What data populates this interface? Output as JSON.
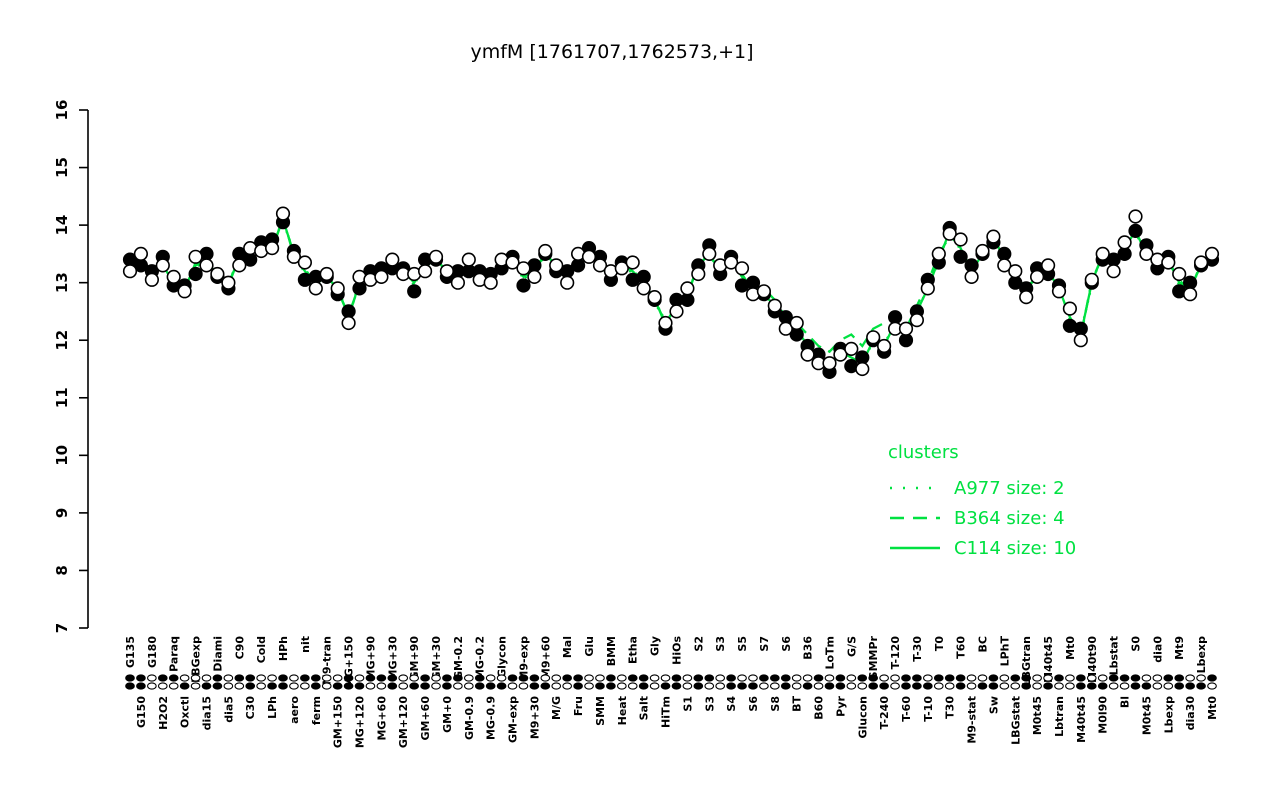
{
  "title": "ymfM [1761707,1762573,+1]",
  "colors": {
    "cluster_green": "#00e141",
    "point_black": "#000000",
    "background": "#ffffff"
  },
  "legend": {
    "title": "clusters",
    "entries": [
      {
        "label": "A977 size: 2",
        "style": "dotted"
      },
      {
        "label": "B364 size: 4",
        "style": "dashed"
      },
      {
        "label": "C114 size: 10",
        "style": "solid"
      }
    ]
  },
  "chart_data": {
    "type": "line",
    "ylim": [
      7,
      16
    ],
    "yticks": [
      7,
      8,
      9,
      10,
      11,
      12,
      13,
      14,
      15,
      16
    ],
    "grid": false,
    "legend_position": "right-middle",
    "categories": [
      "G135",
      "G150",
      "G180",
      "H2O2",
      "Paraq",
      "Oxctl",
      "LBGexp",
      "dia15",
      "Diami",
      "dia5",
      "C90",
      "C30",
      "Cold",
      "LPh",
      "HPh",
      "aero",
      "nit",
      "ferm",
      "M9-tran",
      "GM+150",
      "MG+150",
      "MG+120",
      "MG+90",
      "MG+60",
      "MG+30",
      "GM+120",
      "GM+90",
      "GM+60",
      "GM+30",
      "GM+0",
      "GM-0.2",
      "GM-0.9",
      "MG-0.2",
      "MG-0.9",
      "Glycon",
      "GM-exp",
      "M9-exp",
      "M9+30",
      "M9+60",
      "M/G",
      "Mal",
      "Fru",
      "Glu",
      "SMM",
      "BMM",
      "Heat",
      "Etha",
      "Salt",
      "Gly",
      "HiTm",
      "HiOs",
      "S1",
      "S2",
      "S3",
      "S3",
      "S4",
      "S5",
      "S6",
      "S7",
      "S8",
      "S6",
      "BT",
      "B36",
      "B60",
      "LoTm",
      "Pyr",
      "G/S",
      "Glucon",
      "SMMPr",
      "T-240",
      "T-120",
      "T-60",
      "T-30",
      "T-10",
      "T0",
      "T30",
      "T60",
      "M9-stat",
      "BC",
      "Sw",
      "LPhT",
      "LBGstat",
      "LBGtran",
      "M0t45",
      "M40t45",
      "Lbtran",
      "Mt0",
      "M40t45",
      "M40t90",
      "M0l90",
      "Lbstat",
      "Bl",
      "S0",
      "M0t45",
      "dia0",
      "Lbexp",
      "Mt9",
      "dia30",
      "Lbexp",
      "Mt0"
    ],
    "series": [
      {
        "name": "A977",
        "type": "line",
        "style": "dotted",
        "size": 2,
        "values": [
          13.25,
          13.45,
          13.15,
          13.35,
          12.95,
          12.95,
          13.25,
          13.45,
          13.05,
          13.05,
          13.35,
          13.55,
          13.65,
          13.65,
          14.05,
          13.55,
          13.15,
          13.05,
          13.05,
          12.95,
          12.35,
          13.05,
          13.15,
          13.15,
          13.25,
          13.25,
          12.95,
          13.35,
          13.35,
          13.25,
          13.05,
          13.35,
          13.15,
          13.05,
          13.25,
          13.45,
          13.05,
          13.25,
          13.45,
          13.35,
          13.05,
          13.45,
          13.55,
          13.35,
          13.05,
          13.35,
          13.15,
          13.05,
          12.65,
          12.35,
          12.55,
          12.85,
          13.25,
          13.55,
          13.15,
          13.45,
          13.05,
          12.95,
          12.75,
          12.65,
          12.25,
          12.25,
          11.85,
          11.65,
          11.45,
          11.85,
          11.65,
          11.65,
          11.95,
          11.95,
          12.25,
          12.15,
          12.45,
          12.95,
          13.35,
          13.95,
          13.55,
          13.25,
          13.45,
          13.85,
          13.35,
          13.15,
          12.85,
          13.15,
          13.15,
          12.95,
          12.35,
          12.15,
          12.95,
          13.55,
          13.25,
          13.65,
          13.85,
          13.55,
          13.25,
          13.45,
          12.95,
          12.95,
          13.25,
          13.55
        ]
      },
      {
        "name": "B364",
        "type": "line",
        "style": "dashed",
        "size": 4,
        "values": [
          13.35,
          13.35,
          13.25,
          13.25,
          13.05,
          12.85,
          13.35,
          13.35,
          13.15,
          12.95,
          13.45,
          13.45,
          13.75,
          13.55,
          14.15,
          13.45,
          13.25,
          12.95,
          13.15,
          12.85,
          12.45,
          12.95,
          13.25,
          13.05,
          13.35,
          13.15,
          13.05,
          13.25,
          13.45,
          13.15,
          13.15,
          13.25,
          13.25,
          12.95,
          13.35,
          13.35,
          13.15,
          13.15,
          13.55,
          13.25,
          13.15,
          13.35,
          13.65,
          13.25,
          13.15,
          13.25,
          13.25,
          12.95,
          12.75,
          12.25,
          12.65,
          12.75,
          13.35,
          13.45,
          13.25,
          13.35,
          13.15,
          12.85,
          12.9,
          12.7,
          12.4,
          12.3,
          12.1,
          11.9,
          11.8,
          12.0,
          12.1,
          11.9,
          12.2,
          12.3,
          12.4,
          12.2,
          12.6,
          13.0,
          13.5,
          13.8,
          13.65,
          13.15,
          13.55,
          13.75,
          13.45,
          13.05,
          12.95,
          13.05,
          13.25,
          12.85,
          12.45,
          12.05,
          13.05,
          13.45,
          13.35,
          13.55,
          13.95,
          13.45,
          13.35,
          13.35,
          13.05,
          12.85,
          13.35,
          13.45
        ]
      },
      {
        "name": "C114",
        "type": "line",
        "style": "solid",
        "size": 10,
        "values": [
          13.3,
          13.4,
          13.2,
          13.3,
          13.0,
          12.9,
          13.3,
          13.4,
          13.1,
          13.0,
          13.4,
          13.5,
          13.7,
          13.6,
          14.1,
          13.5,
          13.2,
          13.0,
          13.1,
          12.9,
          12.4,
          13.0,
          13.2,
          13.1,
          13.3,
          13.2,
          13.0,
          13.3,
          13.4,
          13.2,
          13.1,
          13.3,
          13.2,
          13.0,
          13.3,
          13.4,
          13.1,
          13.2,
          13.5,
          13.3,
          13.1,
          13.4,
          13.6,
          13.3,
          13.1,
          13.3,
          13.2,
          13.0,
          12.7,
          12.3,
          12.6,
          12.8,
          13.3,
          13.5,
          13.2,
          13.4,
          13.1,
          12.9,
          12.8,
          12.6,
          12.3,
          12.2,
          11.9,
          11.6,
          11.5,
          11.8,
          11.7,
          11.6,
          12.0,
          11.9,
          12.3,
          12.1,
          12.5,
          12.9,
          13.4,
          13.9,
          13.6,
          13.2,
          13.5,
          13.8,
          13.4,
          13.1,
          12.9,
          13.1,
          13.2,
          12.9,
          12.4,
          12.1,
          13.0,
          13.5,
          13.3,
          13.6,
          13.9,
          13.5,
          13.3,
          13.4,
          13.0,
          12.9,
          13.3,
          13.5
        ]
      },
      {
        "name": "samples-filled",
        "type": "scatter",
        "marker": "filled",
        "values": [
          13.4,
          13.3,
          13.2,
          13.45,
          12.95,
          12.95,
          13.15,
          13.5,
          13.1,
          12.9,
          13.5,
          13.4,
          13.7,
          13.75,
          14.05,
          13.55,
          13.05,
          13.1,
          13.1,
          12.8,
          12.5,
          12.9,
          13.2,
          13.25,
          13.25,
          13.25,
          12.85,
          13.4,
          13.4,
          13.1,
          13.2,
          13.2,
          13.2,
          13.15,
          13.25,
          13.45,
          12.95,
          13.3,
          13.5,
          13.2,
          13.2,
          13.3,
          13.6,
          13.45,
          13.05,
          13.35,
          13.05,
          13.1,
          12.7,
          12.2,
          12.7,
          12.7,
          13.3,
          13.65,
          13.15,
          13.45,
          12.95,
          13.0,
          12.8,
          12.5,
          12.4,
          12.1,
          11.9,
          11.75,
          11.45,
          11.85,
          11.55,
          11.7,
          12.0,
          11.8,
          12.4,
          12.0,
          12.5,
          13.05,
          13.35,
          13.95,
          13.45,
          13.3,
          13.5,
          13.7,
          13.5,
          13.0,
          12.9,
          13.25,
          13.15,
          12.95,
          12.25,
          12.2,
          13.0,
          13.4,
          13.4,
          13.5,
          13.9,
          13.65,
          13.25,
          13.45,
          12.85,
          13.0,
          13.3,
          13.4
        ]
      },
      {
        "name": "samples-open",
        "type": "scatter",
        "marker": "open",
        "values": [
          13.2,
          13.5,
          13.05,
          13.3,
          13.1,
          12.85,
          13.45,
          13.3,
          13.15,
          13.0,
          13.3,
          13.6,
          13.55,
          13.6,
          14.2,
          13.45,
          13.35,
          12.9,
          13.15,
          12.9,
          12.3,
          13.1,
          13.05,
          13.1,
          13.4,
          13.15,
          13.15,
          13.2,
          13.45,
          13.2,
          13.0,
          13.4,
          13.05,
          13.0,
          13.4,
          13.35,
          13.25,
          13.1,
          13.55,
          13.3,
          13.0,
          13.5,
          13.45,
          13.3,
          13.2,
          13.25,
          13.35,
          12.9,
          12.75,
          12.3,
          12.5,
          12.9,
          13.15,
          13.5,
          13.3,
          13.35,
          13.25,
          12.8,
          12.85,
          12.6,
          12.2,
          12.3,
          11.75,
          11.6,
          11.6,
          11.75,
          11.85,
          11.5,
          12.05,
          11.9,
          12.2,
          12.2,
          12.35,
          12.9,
          13.5,
          13.85,
          13.75,
          13.1,
          13.55,
          13.8,
          13.3,
          13.2,
          12.75,
          13.1,
          13.3,
          12.85,
          12.55,
          12.0,
          13.05,
          13.5,
          13.2,
          13.7,
          14.15,
          13.5,
          13.4,
          13.35,
          13.15,
          12.8,
          13.35,
          13.5
        ]
      }
    ],
    "condition_markers": "ffoffooofoffoofoffoofofffoofoffofoofffooffoofoffoofoffofoofffoofofoffooffofffoofoffoofofoofffooffoof"
  }
}
